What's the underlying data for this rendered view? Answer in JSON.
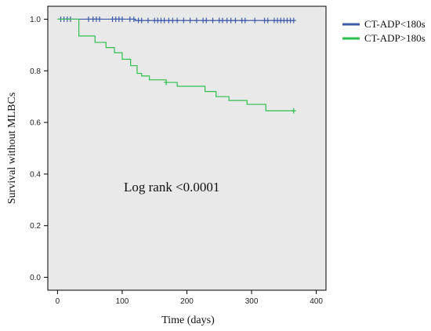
{
  "chart_data": {
    "type": "line",
    "subtype": "kaplan-meier",
    "xlabel": "Time (days)",
    "ylabel": "Survival without MLBCs",
    "xlim": [
      -15,
      415
    ],
    "ylim": [
      -0.05,
      1.05
    ],
    "xticks": [
      0,
      100,
      200,
      300,
      400
    ],
    "yticks": [
      0.0,
      0.2,
      0.4,
      0.6,
      0.8,
      1.0
    ],
    "xtick_labels": [
      "0",
      "100",
      "200",
      "300",
      "400"
    ],
    "ytick_labels": [
      "0.0",
      "0.2",
      "0.4",
      "0.6",
      "0.8",
      "1.0"
    ],
    "grid": false,
    "legend_position": "top-right, outside plot",
    "plot_background": "#e9e9e9",
    "annotation": "Log rank <0.0001",
    "series": [
      {
        "name": "CT-ADP<180s",
        "color": "#3f5aa9",
        "steps": [
          [
            0,
            1.0
          ],
          [
            120,
            0.995
          ],
          [
            365,
            0.995
          ]
        ],
        "end_x": 365,
        "censored": [
          5,
          10,
          15,
          20,
          48,
          55,
          60,
          65,
          85,
          90,
          95,
          100,
          112,
          118,
          125,
          130,
          140,
          150,
          155,
          160,
          165,
          172,
          178,
          185,
          195,
          205,
          215,
          225,
          230,
          240,
          250,
          255,
          262,
          268,
          275,
          285,
          290,
          305,
          320,
          325,
          335,
          340,
          345,
          350,
          355,
          360,
          365
        ]
      },
      {
        "name": "CT-ADP>180s",
        "color": "#2fbf4e",
        "steps": [
          [
            0,
            1.0
          ],
          [
            33,
            0.935
          ],
          [
            58,
            0.91
          ],
          [
            75,
            0.89
          ],
          [
            88,
            0.87
          ],
          [
            100,
            0.845
          ],
          [
            113,
            0.82
          ],
          [
            123,
            0.79
          ],
          [
            130,
            0.78
          ],
          [
            142,
            0.765
          ],
          [
            168,
            0.755
          ],
          [
            185,
            0.74
          ],
          [
            228,
            0.72
          ],
          [
            245,
            0.7
          ],
          [
            265,
            0.685
          ],
          [
            293,
            0.67
          ],
          [
            322,
            0.645
          ],
          [
            365,
            0.645
          ]
        ],
        "end_x": 365,
        "censored": [
          168,
          365
        ]
      }
    ]
  }
}
